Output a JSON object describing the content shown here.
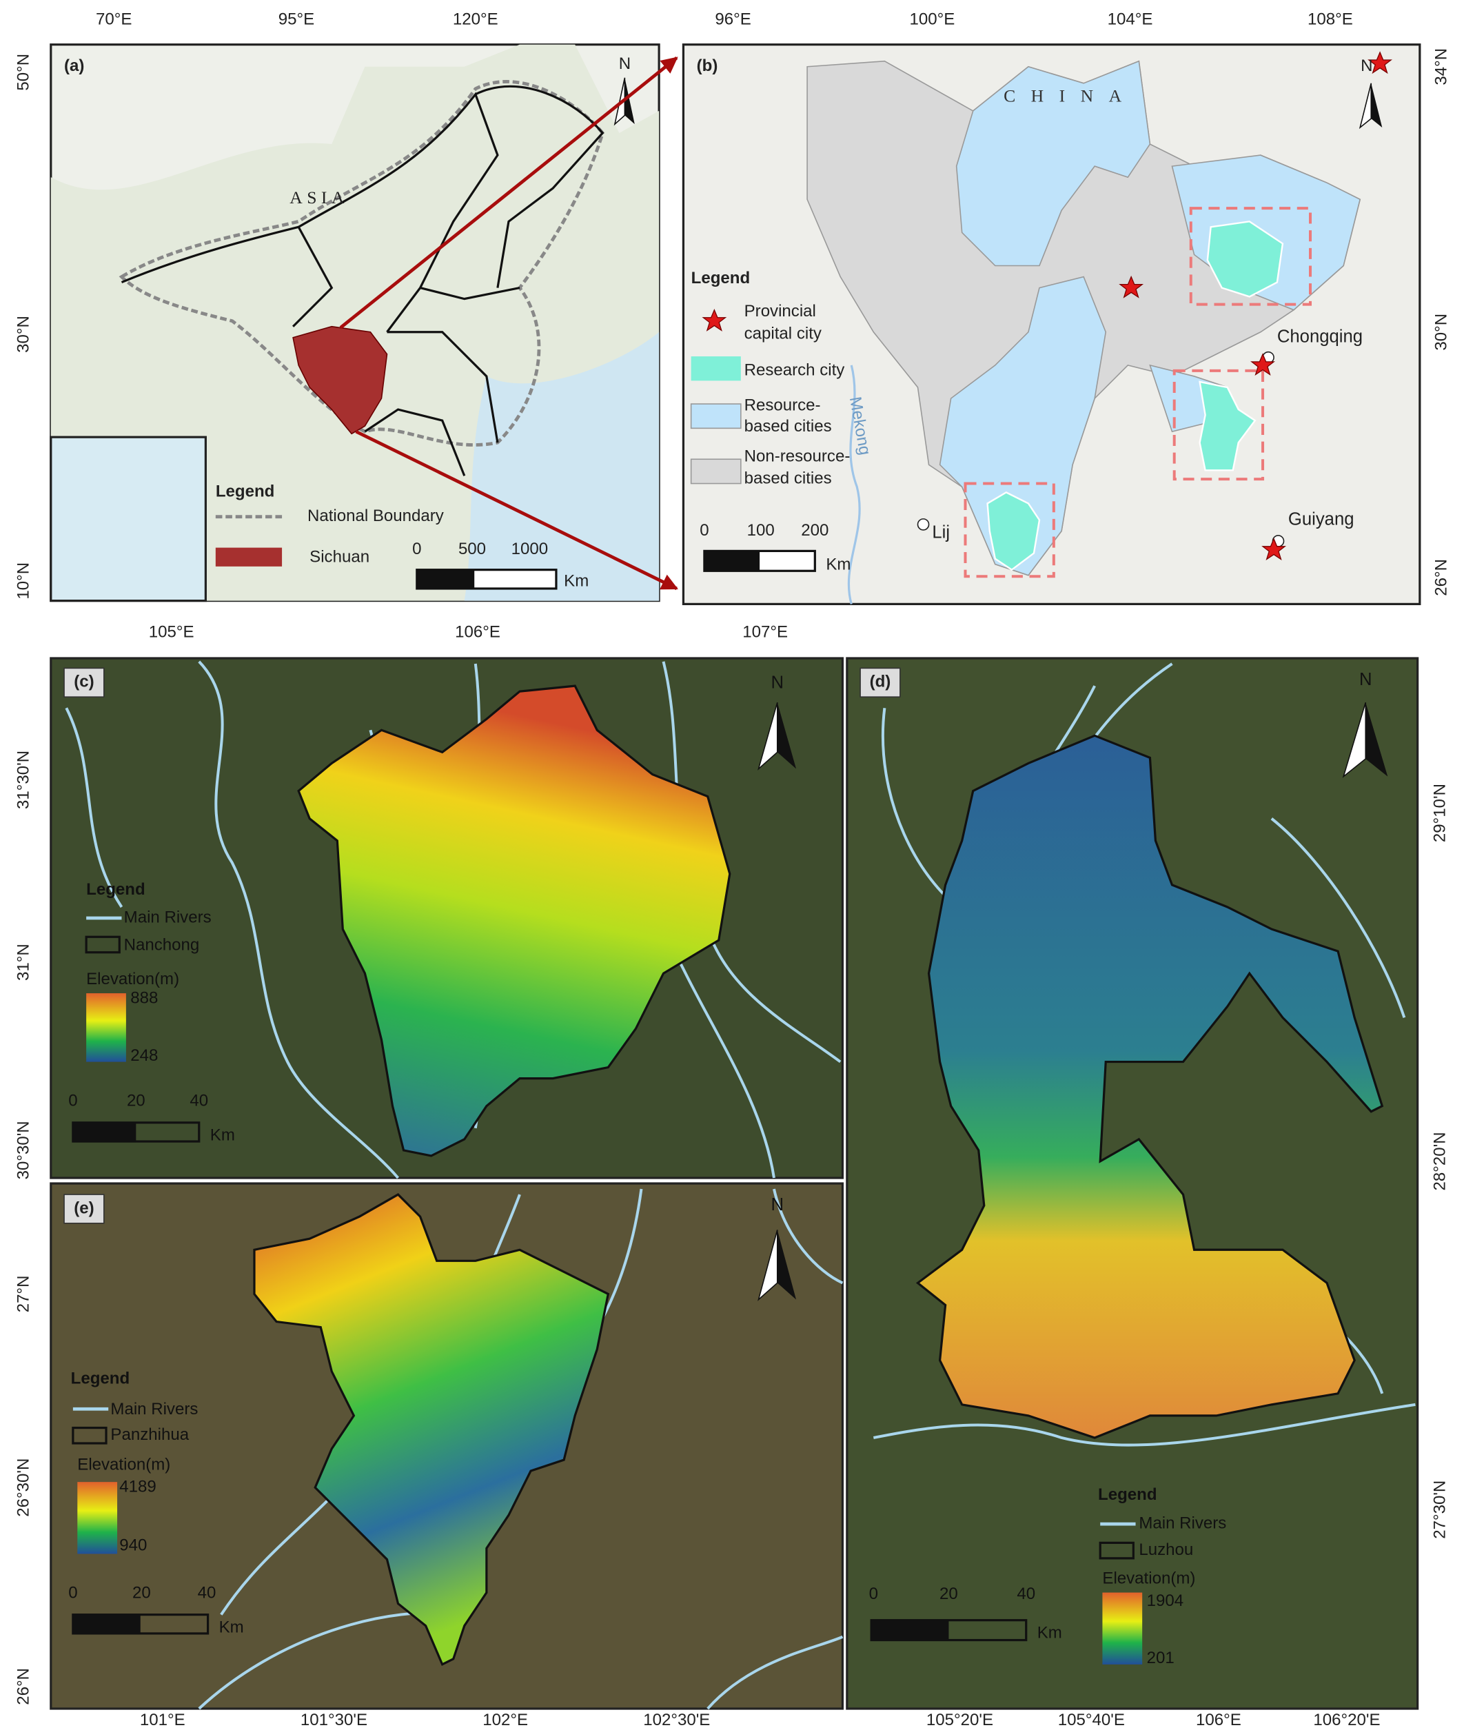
{
  "panel_a": {
    "label": "(a)",
    "north": "N",
    "xticks": [
      "70°E",
      "95°E",
      "120°E"
    ],
    "yticks": [
      "50°N",
      "30°N",
      "10°N"
    ],
    "place": "ASIA",
    "legend": {
      "title": "Legend",
      "items": [
        "National Boundary",
        "Sichuan"
      ]
    },
    "scale": [
      "0",
      "500",
      "1000"
    ],
    "unit": "Km"
  },
  "panel_b": {
    "label": "(b)",
    "north": "N",
    "xticks": [
      "96°E",
      "100°E",
      "104°E",
      "108°E"
    ],
    "yticks": [
      "34°N",
      "30°N",
      "26°N"
    ],
    "places": [
      "CHINA",
      "Chongqing",
      "Guiyang",
      "Lij"
    ],
    "river": "Mekong",
    "legend": {
      "title": "Legend",
      "items": [
        {
          "lines": [
            "Provincial",
            "capital city"
          ]
        },
        {
          "lines": [
            "Research city"
          ]
        },
        {
          "lines": [
            "Resource-",
            "based cities"
          ]
        },
        {
          "lines": [
            "Non-resource-",
            "based cities"
          ]
        }
      ]
    },
    "scale": [
      "0",
      "100",
      "200"
    ],
    "unit": "Km"
  },
  "panel_c": {
    "label": "(c)",
    "north": "N",
    "xticks": [
      "105°E",
      "106°E",
      "107°E"
    ],
    "yticks": [
      "31°30'N",
      "31°N",
      "30°30'N"
    ],
    "legend": {
      "title": "Legend",
      "items": [
        "Main Rivers",
        "Nanchong"
      ],
      "elevation_title": "Elevation(m)",
      "elevation_max": "888",
      "elevation_min": "248"
    },
    "scale": [
      "0",
      "20",
      "40"
    ],
    "unit": "Km"
  },
  "panel_d": {
    "label": "(d)",
    "north": "N",
    "xticks": [
      "105°20'E",
      "105°40'E",
      "106°E",
      "106°20'E"
    ],
    "yticks": [
      "29°10'N",
      "28°20'N",
      "27°30'N"
    ],
    "legend": {
      "title": "Legend",
      "items": [
        "Main Rivers",
        "Luzhou"
      ],
      "elevation_title": "Elevation(m)",
      "elevation_max": "1904",
      "elevation_min": "201"
    },
    "scale": [
      "0",
      "20",
      "40"
    ],
    "unit": "Km"
  },
  "panel_e": {
    "label": "(e)",
    "north": "N",
    "xticks": [
      "101°E",
      "101°30'E",
      "102°E",
      "102°30'E"
    ],
    "yticks": [
      "27°N",
      "26°30'N",
      "26°N"
    ],
    "legend": {
      "title": "Legend",
      "items": [
        "Main Rivers",
        "Panzhihua"
      ],
      "elevation_title": "Elevation(m)",
      "elevation_max": "4189",
      "elevation_min": "940"
    },
    "scale": [
      "0",
      "20",
      "40"
    ],
    "unit": "Km"
  }
}
